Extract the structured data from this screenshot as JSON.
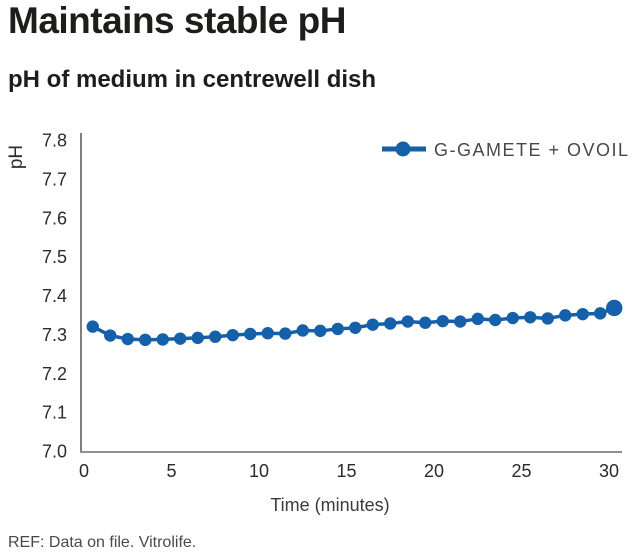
{
  "header": {
    "title": "Maintains stable pH",
    "subtitle": "pH of medium in centrewell dish"
  },
  "footer": {
    "ref": "REF: Data on file. Vitrolife."
  },
  "colors": {
    "accent": "#1560a8",
    "title_text": "#1d1d1b",
    "tick_text": "#2b2b2b",
    "legend_text": "#48484c",
    "y_axis_line": "#7f7f7f",
    "x_axis_line": "#8f8f8f"
  },
  "chart_data": {
    "type": "line",
    "title": "Maintains stable pH",
    "subtitle": "pH of medium in centrewell dish",
    "xlabel": "Time (minutes)",
    "ylabel": "pH",
    "xlim": [
      0,
      30
    ],
    "ylim": [
      7.0,
      7.8
    ],
    "xticks": [
      0,
      5,
      10,
      15,
      20,
      25,
      30
    ],
    "yticks": [
      7.0,
      7.1,
      7.2,
      7.3,
      7.4,
      7.5,
      7.6,
      7.7,
      7.8
    ],
    "grid": false,
    "legend_position": "top-right",
    "series": [
      {
        "name": "G-GAMETE + OVOIL",
        "color": "#1560a8",
        "marker": "circle",
        "x": [
          0.5,
          1.5,
          2.5,
          3.5,
          4.5,
          5.5,
          6.5,
          7.5,
          8.5,
          9.5,
          10.5,
          11.5,
          12.5,
          13.5,
          14.5,
          15.5,
          16.5,
          17.5,
          18.5,
          19.5,
          20.5,
          21.5,
          22.5,
          23.5,
          24.5,
          25.5,
          26.5,
          27.5,
          28.5,
          29.5,
          30.3
        ],
        "y": [
          7.32,
          7.297,
          7.288,
          7.286,
          7.287,
          7.289,
          7.291,
          7.294,
          7.298,
          7.301,
          7.303,
          7.302,
          7.31,
          7.309,
          7.314,
          7.317,
          7.325,
          7.328,
          7.333,
          7.33,
          7.334,
          7.333,
          7.34,
          7.337,
          7.342,
          7.344,
          7.341,
          7.349,
          7.352,
          7.354,
          7.368
        ]
      }
    ]
  }
}
